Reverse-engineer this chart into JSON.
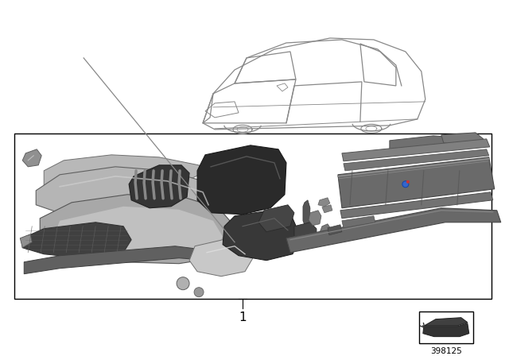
{
  "part_number": "398125",
  "label_number": "1",
  "bg_color": "#ffffff",
  "box_color": "#000000",
  "gray_light": "#c0c0c0",
  "gray_mid": "#888888",
  "gray_dark": "#505050",
  "gray_very_dark": "#303030",
  "sill_color": "#707070",
  "bumper_color": "#b0b0b0",
  "duct_color": "#2a2a2a"
}
